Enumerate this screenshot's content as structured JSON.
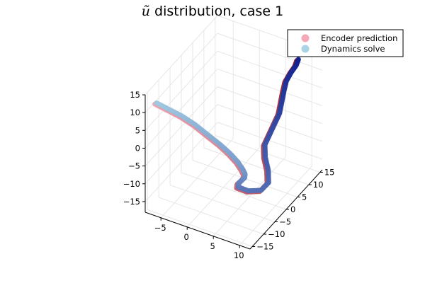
{
  "chart_data": {
    "type": "scatter",
    "title_symbol": "ũ",
    "title_text": " distribution, case 1",
    "legend_placement": "top-right",
    "grid": true,
    "xlim": [
      -8,
      12
    ],
    "ylim": [
      -16,
      16
    ],
    "zlim": [
      -18,
      15
    ],
    "x_ticks": [
      -5,
      0,
      5,
      10
    ],
    "y_ticks": [
      -15,
      -10,
      -5,
      0,
      5,
      10,
      15
    ],
    "z_ticks": [
      -15,
      -10,
      -5,
      0,
      5,
      10,
      15
    ],
    "series": [
      {
        "name": "Encoder prediction",
        "color": "#f4a9b6",
        "points": [
          [
            8,
            14,
            12.0
          ],
          [
            8,
            13,
            11.0
          ],
          [
            7.5,
            12,
            9.5
          ],
          [
            7,
            11,
            7.5
          ],
          [
            7,
            10,
            5.5
          ],
          [
            7,
            9,
            3.0
          ],
          [
            7,
            8,
            0.5
          ],
          [
            6.5,
            7,
            -2.0
          ],
          [
            6,
            6,
            -4.5
          ],
          [
            5.5,
            5,
            -7.0
          ],
          [
            6,
            4,
            -9.5
          ],
          [
            7,
            3,
            -12.0
          ],
          [
            7.5,
            2,
            -14.5
          ],
          [
            6.5,
            1,
            -16.5
          ],
          [
            4.5,
            0,
            -17.0
          ],
          [
            3,
            -1,
            -16.0
          ],
          [
            3.5,
            -2,
            -14.0
          ],
          [
            4.5,
            -3,
            -12.0
          ],
          [
            5.5,
            -4,
            -10.0
          ],
          [
            6,
            -5,
            -8.0
          ],
          [
            6,
            -6,
            -6.0
          ],
          [
            5.5,
            -7,
            -3.5
          ],
          [
            4.5,
            -8,
            -1.0
          ],
          [
            3,
            -9,
            1.5
          ],
          [
            1,
            -10,
            4.0
          ],
          [
            -1,
            -11,
            6.5
          ],
          [
            -3,
            -12,
            8.5
          ],
          [
            -5,
            -13,
            10.0
          ],
          [
            -7,
            -14,
            11.5
          ]
        ]
      },
      {
        "name": "Dynamics solve",
        "color": "#a8d4e6",
        "points": [
          [
            8.3,
            14,
            12.5
          ],
          [
            8.3,
            13,
            11.5
          ],
          [
            7.8,
            12,
            10.0
          ],
          [
            7.3,
            11,
            8.0
          ],
          [
            7.3,
            10,
            6.0
          ],
          [
            7.3,
            9,
            3.5
          ],
          [
            7.3,
            8,
            1.0
          ],
          [
            6.8,
            7,
            -1.5
          ],
          [
            6.3,
            6,
            -4.0
          ],
          [
            5.8,
            5,
            -6.5
          ],
          [
            6.3,
            4,
            -9.0
          ],
          [
            7.3,
            3,
            -11.5
          ],
          [
            7.8,
            2,
            -14.0
          ],
          [
            6.8,
            1,
            -16.0
          ],
          [
            4.8,
            0,
            -16.5
          ],
          [
            3.3,
            -1,
            -15.5
          ],
          [
            3.8,
            -2,
            -13.5
          ],
          [
            4.8,
            -3,
            -11.5
          ],
          [
            5.8,
            -4,
            -9.5
          ],
          [
            6.3,
            -5,
            -7.5
          ],
          [
            6.3,
            -6,
            -5.5
          ],
          [
            5.8,
            -7,
            -3.0
          ],
          [
            4.8,
            -8,
            -0.5
          ],
          [
            3.3,
            -9,
            2.0
          ],
          [
            1.3,
            -10,
            4.5
          ],
          [
            -0.7,
            -11,
            7.0
          ],
          [
            -2.7,
            -12,
            9.0
          ],
          [
            -4.7,
            -13,
            10.5
          ],
          [
            -6.7,
            -14,
            12.0
          ]
        ]
      }
    ]
  }
}
